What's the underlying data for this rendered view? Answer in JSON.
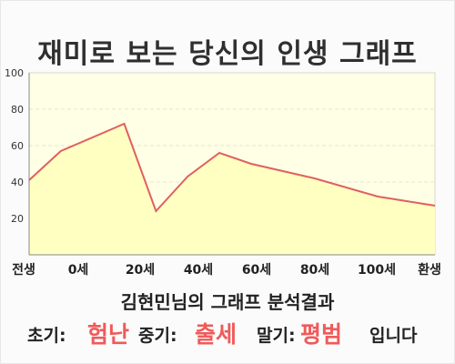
{
  "title": "재미로 보는 당신의 인생 그래프",
  "chart_data": {
    "type": "area",
    "x": [
      -10,
      0,
      20,
      30,
      40,
      50,
      60,
      80,
      100,
      118
    ],
    "values": [
      41,
      57,
      72,
      24,
      43,
      56,
      50,
      42,
      32,
      27
    ],
    "ylim": [
      0,
      100
    ],
    "yticks": [
      "100",
      "80",
      "60",
      "40",
      "20"
    ],
    "xticks": [
      "전생",
      "0세",
      "20세",
      "40세",
      "60세",
      "80세",
      "100세",
      "환생"
    ],
    "grid": true,
    "line_color": "#e06060",
    "fill_color": "#ffffc2"
  },
  "summary": {
    "subtitle": "김현민님의 그래프 분석결과",
    "early_label": "초기:",
    "early_value": "험난",
    "mid_label": "중기:",
    "mid_value": "출세",
    "late_label": "말기:",
    "late_value": "평범",
    "ending": "입니다"
  }
}
